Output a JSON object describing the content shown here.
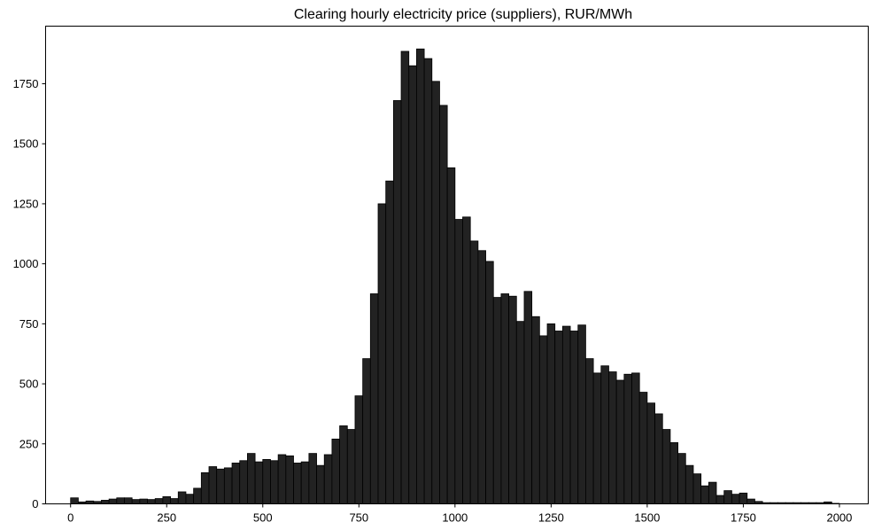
{
  "chart_data": {
    "type": "bar",
    "title": "Clearing hourly electricity price (suppliers), RUR/MWh",
    "xlabel": "",
    "ylabel": "",
    "xlim": [
      -65,
      2075
    ],
    "ylim": [
      0,
      1990
    ],
    "xticks": [
      0,
      250,
      500,
      750,
      1000,
      1250,
      1500,
      1750,
      2000
    ],
    "yticks": [
      0,
      250,
      500,
      750,
      1000,
      1250,
      1500,
      1750
    ],
    "grid": false,
    "bar_color": "#222222",
    "bin_start": 0,
    "bin_width": 20,
    "values": [
      25,
      8,
      12,
      10,
      15,
      20,
      25,
      25,
      18,
      20,
      18,
      22,
      30,
      22,
      50,
      40,
      65,
      130,
      155,
      145,
      150,
      170,
      180,
      210,
      175,
      185,
      180,
      205,
      200,
      170,
      175,
      210,
      160,
      205,
      270,
      325,
      310,
      450,
      605,
      875,
      1250,
      1345,
      1680,
      1885,
      1825,
      1895,
      1855,
      1760,
      1660,
      1400,
      1185,
      1195,
      1095,
      1055,
      1010,
      860,
      875,
      865,
      760,
      885,
      780,
      700,
      750,
      720,
      740,
      720,
      745,
      605,
      545,
      575,
      550,
      515,
      540,
      545,
      465,
      420,
      375,
      310,
      255,
      210,
      160,
      125,
      75,
      90,
      35,
      55,
      40,
      45,
      20,
      10,
      5,
      5,
      5,
      5,
      5,
      5,
      5,
      5,
      8,
      2,
      0,
      0,
      0,
      0,
      0,
      0,
      0,
      0,
      0,
      2
    ]
  }
}
